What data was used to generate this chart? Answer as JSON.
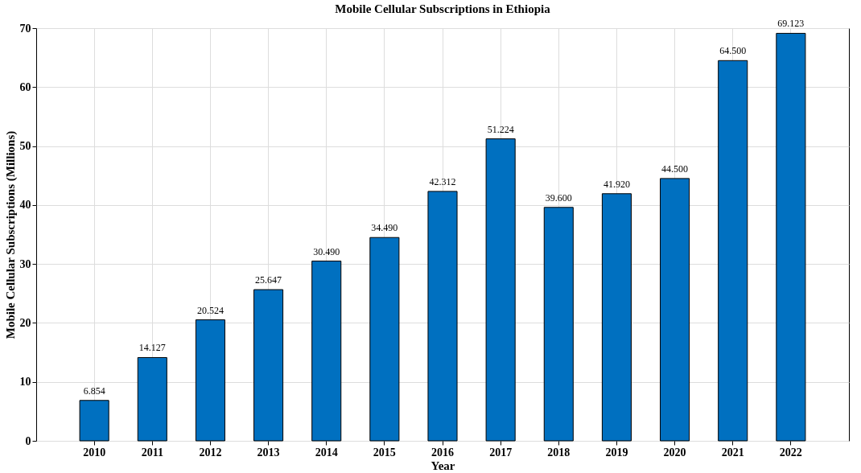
{
  "chart_data": {
    "type": "bar",
    "title": "Mobile Cellular Subscriptions in Ethiopia",
    "xlabel": "Year",
    "ylabel": "Mobile Cellular Subscriptions (Millions)",
    "categories": [
      "2010",
      "2011",
      "2012",
      "2013",
      "2014",
      "2015",
      "2016",
      "2017",
      "2018",
      "2019",
      "2020",
      "2021",
      "2022"
    ],
    "values": [
      6.854,
      14.127,
      20.524,
      25.647,
      30.49,
      34.49,
      42.312,
      51.224,
      39.6,
      41.92,
      44.5,
      64.5,
      69.123
    ],
    "value_labels": [
      "6.854",
      "14.127",
      "20.524",
      "25.647",
      "30.490",
      "34.490",
      "42.312",
      "51.224",
      "39.600",
      "41.920",
      "44.500",
      "64.500",
      "69.123"
    ],
    "color": "#0070c0",
    "ylim": [
      0,
      70
    ],
    "yticks": [
      0,
      10,
      20,
      30,
      40,
      50,
      60,
      70
    ],
    "grid": true
  }
}
